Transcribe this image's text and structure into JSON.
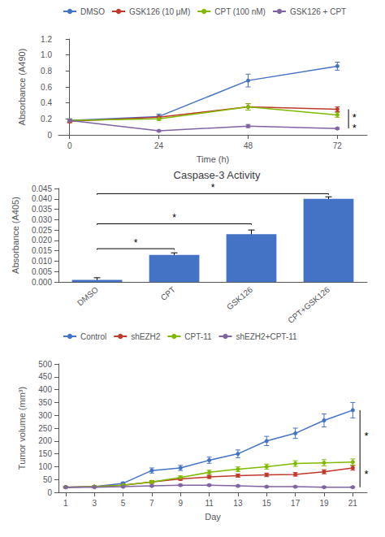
{
  "chart_data": [
    {
      "type": "line",
      "xlabel": "Time (h)",
      "ylabel": "Absorbance (A490)",
      "x": [
        0,
        24,
        48,
        72
      ],
      "series": [
        {
          "name": "DMSO",
          "color": "#4472C4",
          "marker": "circle",
          "values": [
            0.18,
            0.23,
            0.68,
            0.86
          ],
          "yerr": [
            0.02,
            0.03,
            0.08,
            0.05
          ]
        },
        {
          "name": "GSK126 (10 μM)",
          "color": "#C0392B",
          "marker": "circle",
          "values": [
            0.17,
            0.22,
            0.35,
            0.32
          ],
          "yerr": [
            0.02,
            0.02,
            0.04,
            0.03
          ]
        },
        {
          "name": "CPT (100 nM)",
          "color": "#7FBA00",
          "marker": "circle",
          "values": [
            0.18,
            0.2,
            0.35,
            0.25
          ],
          "yerr": [
            0.02,
            0.02,
            0.04,
            0.03
          ]
        },
        {
          "name": "GSK126 + CPT",
          "color": "#8064A2",
          "marker": "circle",
          "values": [
            0.18,
            0.05,
            0.11,
            0.08
          ],
          "yerr": [
            0.02,
            0.01,
            0.02,
            0.01
          ]
        }
      ],
      "xlim": [
        -3,
        80
      ],
      "xticks": [
        0,
        24,
        48,
        72
      ],
      "ylim": [
        0,
        1.2
      ],
      "yticks": [
        0,
        0.2,
        0.4,
        0.6,
        0.8,
        {
          "value": 1,
          "label": "1.0"
        },
        1.2
      ],
      "legend": "upper left",
      "grid": false,
      "annotations": [
        {
          "text": "*",
          "x": 76,
          "y": 0.22
        },
        {
          "text": "*",
          "x": 76,
          "y": 0.09
        }
      ],
      "brackets": [
        {
          "x": 75,
          "y": [
            0.08,
            0.32
          ]
        }
      ]
    },
    {
      "type": "bar",
      "title": "Caspase-3 Activity",
      "ylabel": "Absorbance (A405)",
      "categories": [
        "DMSO",
        "CPT",
        "GSK126",
        "CPT+GSK126"
      ],
      "values": [
        0.001,
        0.013,
        0.023,
        0.04
      ],
      "yerr": [
        0.001,
        0.001,
        0.002,
        0.001
      ],
      "color": "#4472C4",
      "ylim": [
        0,
        0.045
      ],
      "yticks": [
        {
          "value": 0,
          "label": "0.000"
        },
        0.005,
        {
          "value": 0.01,
          "label": "0.010"
        },
        0.015,
        {
          "value": 0.02,
          "label": "0.020"
        },
        0.025,
        {
          "value": 0.03,
          "label": "0.030"
        },
        0.035,
        {
          "value": 0.04,
          "label": "0.040"
        },
        0.045
      ],
      "grid": false,
      "brackets": [
        {
          "text": "*",
          "from": "DMSO",
          "to": "CPT",
          "y": [
            0.0155,
            0.016
          ]
        },
        {
          "text": "*",
          "from": "DMSO",
          "to": "GSK126",
          "y": [
            0.0275,
            0.028
          ]
        },
        {
          "text": "*",
          "from": "DMSO",
          "to": "CPT+GSK126",
          "y": [
            0.042,
            0.0425
          ]
        }
      ]
    },
    {
      "type": "line",
      "xlabel": "Day",
      "ylabel": "Tumor volume (mm³)",
      "x": [
        1,
        3,
        5,
        7,
        9,
        11,
        13,
        15,
        17,
        19,
        21
      ],
      "series": [
        {
          "name": "Control",
          "color": "#4472C4",
          "marker": "circle",
          "values": [
            20,
            22,
            35,
            85,
            95,
            125,
            150,
            200,
            230,
            280,
            320
          ],
          "yerr": [
            3,
            3,
            5,
            10,
            10,
            12,
            15,
            18,
            20,
            25,
            30
          ]
        },
        {
          "name": "shEZH2",
          "color": "#C0392B",
          "marker": "circle",
          "values": [
            20,
            22,
            28,
            40,
            52,
            60,
            65,
            68,
            70,
            80,
            95
          ],
          "yerr": [
            3,
            3,
            4,
            5,
            5,
            6,
            6,
            7,
            7,
            8,
            9
          ]
        },
        {
          "name": "CPT-11",
          "color": "#7FBA00",
          "marker": "circle",
          "values": [
            20,
            22,
            28,
            40,
            58,
            78,
            90,
            100,
            112,
            115,
            118
          ],
          "yerr": [
            3,
            3,
            4,
            5,
            6,
            8,
            9,
            10,
            11,
            12,
            12
          ]
        },
        {
          "name": "shEZH2+CPT-11",
          "color": "#8064A2",
          "marker": "circle",
          "values": [
            20,
            20,
            22,
            25,
            28,
            28,
            25,
            22,
            22,
            20,
            20
          ],
          "yerr": [
            2,
            2,
            3,
            3,
            3,
            3,
            3,
            3,
            3,
            3,
            3
          ]
        }
      ],
      "xlim": [
        0.5,
        22
      ],
      "xticks": [
        1,
        3,
        5,
        7,
        9,
        11,
        13,
        15,
        17,
        19,
        21
      ],
      "ylim": [
        0,
        500
      ],
      "yticks": [
        0,
        50,
        100,
        150,
        200,
        250,
        300,
        350,
        400,
        450,
        500
      ],
      "legend": "upper left",
      "grid": false,
      "annotations": [
        {
          "text": "*",
          "x": 21.8,
          "y": 220
        },
        {
          "text": "*",
          "x": 21.8,
          "y": 70
        }
      ],
      "brackets": [
        {
          "x": 21.5,
          "y": [
            118,
            320
          ]
        },
        {
          "x": 21.5,
          "y": [
            20,
            118
          ]
        }
      ]
    }
  ]
}
